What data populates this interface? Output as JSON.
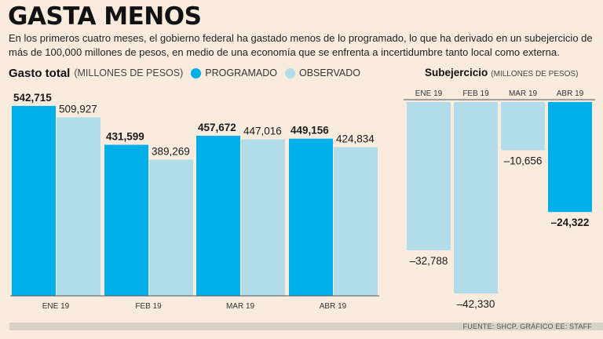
{
  "title": "GASTA MENOS",
  "subtitle": "En los primeros cuatro meses, el gobierno federal ha gastado menos de lo programado, lo que ha derivado en un subejercicio de más de 100,000 millones de pesos, en medio de una economía que se enfrenta a incertidumbre tanto local como externa.",
  "source": "FUENTE: SHCP. GRÁFICO EE: STAFF",
  "colors": {
    "programado": "#00aeea",
    "observado": "#b3dceb",
    "background": "#f9ecdf"
  },
  "chart_data": [
    {
      "type": "bar",
      "title": "Gasto total",
      "units": "(MILLONES DE PESOS)",
      "legend": [
        "PROGRAMADO",
        "OBSERVADO"
      ],
      "categories": [
        "ENE 19",
        "FEB 19",
        "MAR 19",
        "ABR 19"
      ],
      "series": [
        {
          "name": "PROGRAMADO",
          "values": [
            542715,
            431599,
            457672,
            449156
          ],
          "labels": [
            "542,715",
            "431,599",
            "457,672",
            "449,156"
          ]
        },
        {
          "name": "OBSERVADO",
          "values": [
            509927,
            389269,
            447016,
            424834
          ],
          "labels": [
            "509,927",
            "389,269",
            "447,016",
            "424,834"
          ]
        }
      ],
      "ylim": [
        0,
        542715
      ]
    },
    {
      "type": "bar",
      "title": "Subejercicio",
      "units": "(MILLONES DE PESOS)",
      "categories": [
        "ENE 19",
        "FEB 19",
        "MAR 19",
        "ABR 19"
      ],
      "values": [
        -32788,
        -42330,
        -10656,
        -24322
      ],
      "labels": [
        "–32,788",
        "–42,330",
        "–10,656",
        "–24,322"
      ],
      "ylim": [
        -42330,
        0
      ]
    }
  ]
}
